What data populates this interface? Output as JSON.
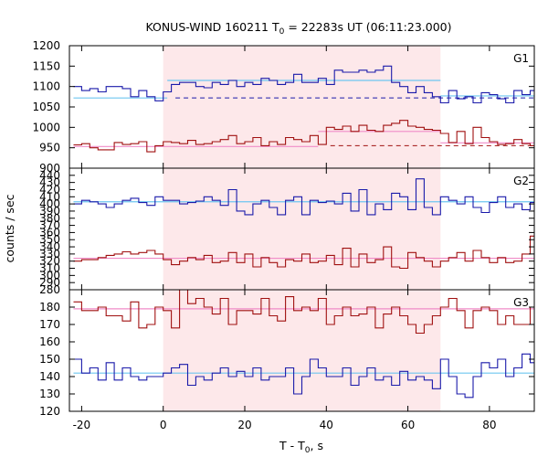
{
  "chart_data": {
    "type": "line",
    "title": "KONUS-WIND 160211 T",
    "title_sub": "0",
    "title_rest": " = 22283s UT (06:11:23.000)",
    "xlabel": "T - T",
    "xlabel_sub": "0",
    "xlabel_rest": ", s",
    "ylabel": "counts / sec",
    "xlim": [
      -23,
      91
    ],
    "xticks": [
      -20,
      0,
      20,
      40,
      60,
      80
    ],
    "x_tick_labels": [
      "-20",
      "0",
      "20",
      "40",
      "60",
      "80"
    ],
    "shaded_interval": [
      0,
      68
    ],
    "colors": {
      "blue": "#1a1aaa",
      "red": "#a01010",
      "blue_fit": "#6ec6f0",
      "red_fit": "#f08cc8",
      "shade": "#fde8ea"
    },
    "bin_start": -22,
    "bin_width": 2,
    "panels": [
      {
        "label": "G1",
        "ylim": [
          900,
          1200
        ],
        "yticks": [
          900,
          950,
          1000,
          1050,
          1100,
          1150,
          1200
        ],
        "y_tick_labels": [
          "900",
          "950",
          "1000",
          "1050",
          "1100",
          "1150",
          "1200"
        ],
        "series": [
          {
            "color": "blue",
            "values": [
              1100,
              1090,
              1095,
              1087,
              1100,
              1100,
              1095,
              1075,
              1090,
              1075,
              1065,
              1087,
              1105,
              1110,
              1110,
              1100,
              1097,
              1110,
              1105,
              1115,
              1100,
              1110,
              1105,
              1120,
              1115,
              1105,
              1110,
              1130,
              1110,
              1110,
              1120,
              1105,
              1140,
              1135,
              1135,
              1140,
              1135,
              1140,
              1150,
              1110,
              1100,
              1085,
              1100,
              1085,
              1075,
              1060,
              1090,
              1070,
              1075,
              1060,
              1085,
              1080,
              1070,
              1060,
              1090,
              1080,
              1090
            ]
          },
          {
            "color": "red",
            "values": [
              957,
              960,
              950,
              945,
              945,
              963,
              958,
              960,
              965,
              940,
              955,
              965,
              963,
              960,
              968,
              958,
              960,
              965,
              970,
              980,
              960,
              965,
              975,
              955,
              965,
              958,
              975,
              970,
              965,
              980,
              958,
              1000,
              995,
              1003,
              990,
              1005,
              993,
              990,
              1005,
              1010,
              1017,
              1003,
              1000,
              995,
              993,
              985,
              963,
              990,
              960,
              1000,
              975,
              965,
              958,
              960,
              970,
              960,
              955
            ]
          }
        ],
        "fits": [
          {
            "color": "blue_fit",
            "segments": [
              [
                -22,
                1072,
                1
              ],
              [
                1,
                1115,
                68
              ],
              [
                68,
                1077,
                91
              ]
            ]
          },
          {
            "color": "red_fit",
            "segments": [
              [
                -22,
                953,
                38
              ],
              [
                38,
                990,
                68
              ],
              [
                68,
                962,
                91
              ]
            ]
          }
        ],
        "dashed": [
          {
            "color": "blue",
            "y": 1072,
            "x": [
              3,
              91
            ]
          },
          {
            "color": "red",
            "y": 955,
            "x": [
              41,
              91
            ]
          }
        ]
      },
      {
        "label": "G2",
        "ylim": [
          280,
          450
        ],
        "yticks": [
          280,
          290,
          300,
          310,
          320,
          330,
          340,
          350,
          360,
          370,
          380,
          390,
          400,
          410,
          420,
          430,
          440
        ],
        "y_tick_labels": [
          "280",
          "290",
          "300",
          "310",
          "320",
          "330",
          "340",
          "350",
          "360",
          "370",
          "380",
          "390",
          "400",
          "410",
          "420",
          "430",
          "440"
        ],
        "series": [
          {
            "color": "blue",
            "values": [
              400,
              405,
              403,
              400,
              395,
              400,
              405,
              408,
              402,
              398,
              410,
              405,
              405,
              400,
              402,
              404,
              410,
              405,
              398,
              420,
              390,
              385,
              400,
              405,
              395,
              385,
              405,
              410,
              385,
              405,
              402,
              404,
              400,
              415,
              390,
              420,
              385,
              400,
              392,
              415,
              410,
              392,
              435,
              395,
              385,
              410,
              405,
              400,
              410,
              395,
              388,
              402,
              410,
              395,
              400,
              392,
              402
            ]
          },
          {
            "color": "red",
            "values": [
              320,
              322,
              322,
              325,
              328,
              330,
              333,
              330,
              332,
              335,
              330,
              322,
              315,
              320,
              325,
              322,
              328,
              318,
              320,
              332,
              318,
              330,
              312,
              325,
              318,
              312,
              322,
              320,
              330,
              318,
              320,
              328,
              315,
              338,
              312,
              330,
              318,
              322,
              340,
              312,
              310,
              332,
              325,
              320,
              312,
              320,
              325,
              332,
              320,
              335,
              325,
              318,
              325,
              318,
              320,
              330,
              355
            ]
          }
        ],
        "fits": [
          {
            "color": "blue_fit",
            "segments": [
              [
                -22,
                403,
                91
              ]
            ]
          },
          {
            "color": "red_fit",
            "segments": [
              [
                -22,
                324,
                91
              ]
            ]
          }
        ],
        "dashed": []
      },
      {
        "label": "G3",
        "ylim": [
          120,
          190
        ],
        "yticks": [
          120,
          130,
          140,
          150,
          160,
          170,
          180
        ],
        "y_tick_labels": [
          "120",
          "130",
          "140",
          "150",
          "160",
          "170",
          "180"
        ],
        "series": [
          {
            "color": "blue",
            "values": [
              150,
              142,
              145,
              138,
              148,
              138,
              145,
              140,
              138,
              140,
              140,
              142,
              145,
              147,
              135,
              140,
              138,
              142,
              145,
              140,
              143,
              140,
              145,
              138,
              140,
              140,
              145,
              130,
              140,
              150,
              145,
              140,
              140,
              145,
              135,
              140,
              145,
              138,
              140,
              135,
              143,
              138,
              140,
              138,
              133,
              150,
              140,
              130,
              128,
              140,
              148,
              145,
              150,
              140,
              145,
              153,
              148
            ]
          },
          {
            "color": "red",
            "values": [
              183,
              178,
              178,
              180,
              175,
              175,
              172,
              183,
              168,
              170,
              180,
              178,
              168,
              190,
              182,
              185,
              180,
              176,
              185,
              170,
              178,
              178,
              176,
              185,
              175,
              172,
              186,
              178,
              180,
              178,
              185,
              170,
              175,
              180,
              175,
              176,
              180,
              168,
              176,
              180,
              175,
              170,
              165,
              170,
              175,
              180,
              185,
              178,
              168,
              178,
              180,
              178,
              170,
              175,
              170,
              170,
              180
            ]
          }
        ],
        "fits": [
          {
            "color": "blue_fit",
            "segments": [
              [
                -22,
                142,
                91
              ]
            ]
          },
          {
            "color": "red_fit",
            "segments": [
              [
                -22,
                179,
                91
              ]
            ]
          }
        ],
        "dashed": []
      }
    ]
  }
}
